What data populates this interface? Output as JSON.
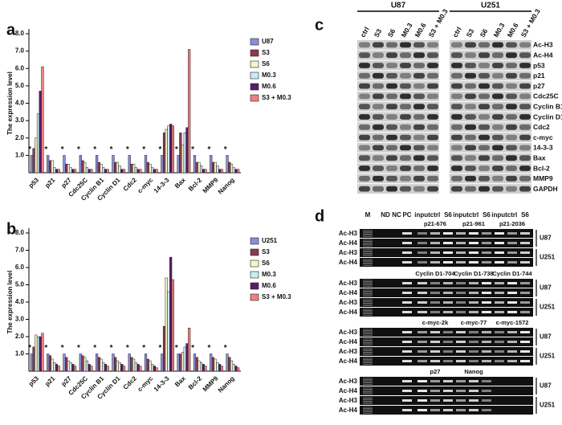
{
  "chart_data": [
    {
      "type": "bar",
      "panel": "a",
      "y_label": "The expression level",
      "categories": [
        "p53",
        "p21",
        "p27",
        "Cdc25C",
        "Cyclin B1",
        "Cyclin D1",
        "Cdc2",
        "c-myc",
        "14-3-3",
        "Bax",
        "Bcl-2",
        "MMP9",
        "Nanog"
      ],
      "significance": [
        "*",
        "*",
        "*",
        "*",
        "*",
        "*",
        "*",
        "*",
        "*",
        "*",
        "*",
        "*",
        "*"
      ],
      "ylim": [
        0,
        8
      ],
      "yticks": [
        {
          "value": 1,
          "label": "1.0"
        },
        {
          "value": 2,
          "label": "2.0"
        },
        {
          "value": 3,
          "label": "3.0"
        },
        {
          "value": 4,
          "label": "4.0"
        },
        {
          "value": 5,
          "label": "5.0"
        },
        {
          "value": 6,
          "label": "6.0"
        },
        {
          "value": 7,
          "label": "7.0"
        },
        {
          "value": 8,
          "label": "8.0"
        }
      ],
      "series": [
        {
          "name": "U87",
          "color": "#8a8fd8",
          "values": [
            1.0,
            1.0,
            1.0,
            1.0,
            1.0,
            1.0,
            1.0,
            1.0,
            1.0,
            1.0,
            1.0,
            1.0,
            1.0
          ]
        },
        {
          "name": "S3",
          "color": "#8b3a4e",
          "values": [
            1.4,
            0.7,
            0.5,
            0.7,
            0.6,
            0.6,
            0.5,
            0.6,
            2.3,
            2.3,
            0.6,
            0.6,
            0.6
          ]
        },
        {
          "name": "S6",
          "color": "#f5f5c8",
          "values": [
            2.0,
            0.7,
            0.5,
            0.6,
            0.5,
            0.6,
            0.5,
            0.5,
            2.5,
            1.6,
            0.6,
            0.6,
            0.5
          ]
        },
        {
          "name": "M0.3",
          "color": "#c8eef5",
          "values": [
            3.4,
            0.3,
            0.3,
            0.3,
            0.3,
            0.4,
            0.3,
            0.3,
            2.7,
            2.3,
            0.4,
            0.4,
            0.3
          ]
        },
        {
          "name": "M0.6",
          "color": "#5b1a6b",
          "values": [
            4.7,
            0.2,
            0.2,
            0.2,
            0.2,
            0.2,
            0.2,
            0.2,
            2.8,
            2.6,
            0.2,
            0.2,
            0.2
          ]
        },
        {
          "name": "S3 + M0.3",
          "color": "#f08080",
          "values": [
            6.1,
            0.2,
            0.2,
            0.2,
            0.2,
            0.2,
            0.2,
            0.2,
            2.7,
            7.1,
            0.2,
            0.2,
            0.2
          ]
        }
      ]
    },
    {
      "type": "bar",
      "panel": "b",
      "y_label": "The expression level",
      "categories": [
        "p53",
        "p21",
        "p27",
        "Cdc25C",
        "Cyclin B1",
        "Cyclin D1",
        "Cdc2",
        "c-myc",
        "14-3-3",
        "Bax",
        "Bcl-2",
        "MMP9",
        "Nanog"
      ],
      "significance": [
        "*",
        "*",
        "*",
        "*",
        "*",
        "*",
        "*",
        "*",
        "*",
        "*",
        "*",
        "*",
        "*"
      ],
      "ylim": [
        0,
        8
      ],
      "yticks": [
        {
          "value": 1,
          "label": "1.0"
        },
        {
          "value": 2,
          "label": "2.0"
        },
        {
          "value": 3,
          "label": "3.0"
        },
        {
          "value": 4,
          "label": "4.0"
        },
        {
          "value": 5,
          "label": "5.0"
        },
        {
          "value": 6,
          "label": "6.0"
        },
        {
          "value": 7,
          "label": "7.0"
        },
        {
          "value": 8,
          "label": "8.0"
        }
      ],
      "series": [
        {
          "name": "U251",
          "color": "#8a8fd8",
          "values": [
            1.0,
            1.0,
            1.0,
            1.0,
            1.0,
            1.0,
            1.0,
            1.0,
            1.0,
            1.0,
            1.0,
            1.0,
            1.0
          ]
        },
        {
          "name": "S3",
          "color": "#8b3a4e",
          "values": [
            1.4,
            0.9,
            0.8,
            0.9,
            0.8,
            0.8,
            0.8,
            0.7,
            2.6,
            1.0,
            0.8,
            0.8,
            0.8
          ]
        },
        {
          "name": "S6",
          "color": "#f5f5c8",
          "values": [
            2.1,
            0.7,
            0.6,
            0.8,
            0.7,
            0.6,
            0.7,
            0.6,
            5.4,
            1.1,
            0.6,
            0.7,
            0.6
          ]
        },
        {
          "name": "M0.3",
          "color": "#c8eef5",
          "values": [
            2.0,
            0.5,
            0.5,
            0.6,
            0.5,
            0.5,
            0.5,
            0.4,
            4.6,
            1.4,
            0.5,
            0.5,
            0.4
          ]
        },
        {
          "name": "M0.6",
          "color": "#5b1a6b",
          "values": [
            2.0,
            0.4,
            0.4,
            0.4,
            0.4,
            0.4,
            0.4,
            0.3,
            6.6,
            1.6,
            0.4,
            0.4,
            0.3
          ]
        },
        {
          "name": "S3 + M0.3",
          "color": "#f08080",
          "values": [
            2.2,
            0.3,
            0.3,
            0.3,
            0.3,
            0.3,
            0.3,
            0.2,
            5.3,
            2.5,
            0.3,
            0.3,
            0.2
          ]
        }
      ]
    }
  ],
  "blot": {
    "panel": "c",
    "cell_lines": [
      "U87",
      "U251"
    ],
    "lanes": [
      "ctrl",
      "S3",
      "S6",
      "M0.3",
      "M0.6",
      "S3 + M0.3"
    ],
    "proteins": [
      "Ac-H3",
      "Ac-H4",
      "p53",
      "p21",
      "p27",
      "Cdc25C",
      "Cyclin B1",
      "Cyclin D1",
      "Cdc2",
      "c-myc",
      "14-3-3",
      "Bax",
      "Bcl-2",
      "MMP9",
      "GAPDH"
    ]
  },
  "gel": {
    "panel": "d",
    "markers": [
      "M",
      "ND",
      "NC",
      "PC"
    ],
    "samples": [
      "input",
      "ctrl",
      "S6"
    ],
    "rows": [
      "Ac-H3",
      "Ac-H4"
    ],
    "cells": [
      "U87",
      "U251"
    ],
    "blocks": [
      {
        "primers": [
          "p21-676",
          "p21-961",
          "p21-2036"
        ]
      },
      {
        "primers": [
          "Cyclin D1-704",
          "Cyclin D1-738",
          "Cyclin D1-744"
        ]
      },
      {
        "primers": [
          "c-myc-2k",
          "c-myc-77",
          "c-myc-1572"
        ]
      },
      {
        "primers": [
          "p27",
          "Nanog"
        ]
      }
    ]
  }
}
